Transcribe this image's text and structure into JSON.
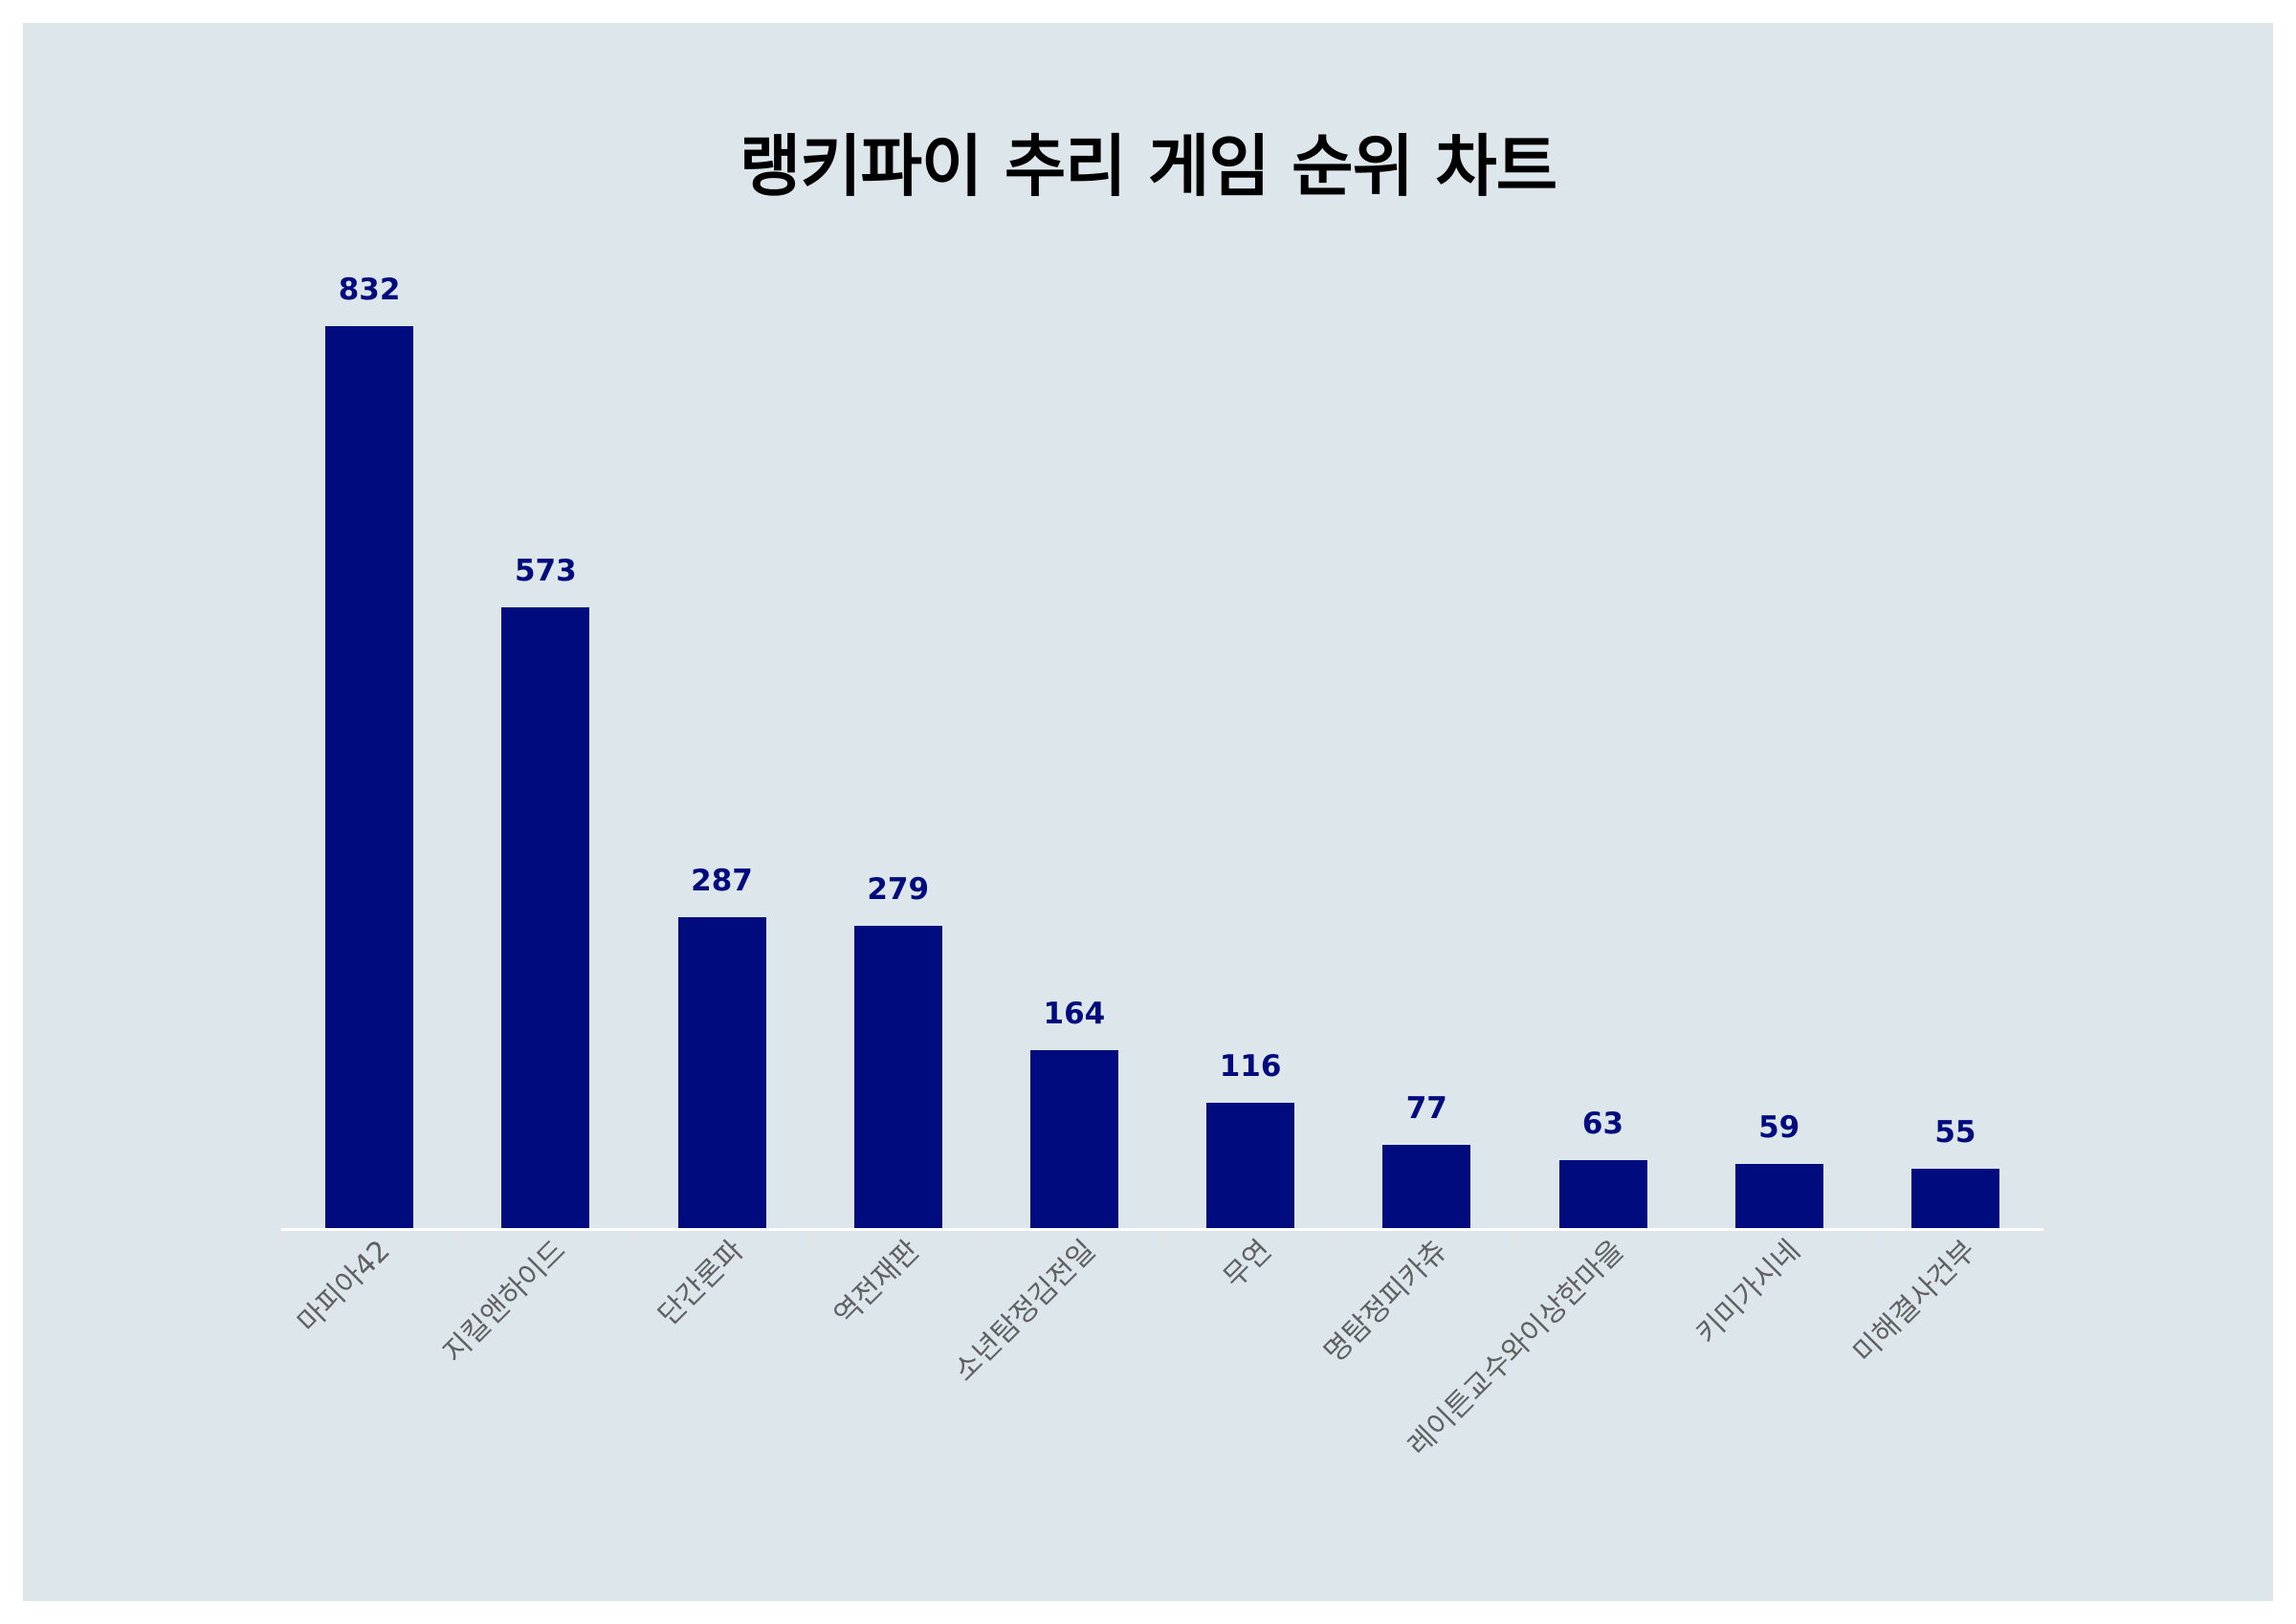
{
  "chart_data": {
    "type": "bar",
    "title": "랭키파이 추리 게임 순위 차트",
    "xlabel": "",
    "ylabel": "",
    "categories": [
      "마피아42",
      "지킬앤하이드",
      "단간론파",
      "역전재판",
      "소년탐정김전일",
      "무연",
      "명탐정피카츄",
      "레이튼교수와이상한마을",
      "키미가시네",
      "미해결사건부"
    ],
    "values": [
      832,
      573,
      287,
      279,
      164,
      116,
      77,
      63,
      59,
      55
    ],
    "ylim": [
      0,
      832
    ],
    "grid": false,
    "legend": null,
    "data_labels": true,
    "bar_color": "#000c7d",
    "background_color": "#dce6eb"
  },
  "title": "랭키파이 추리 게임 순위 차트",
  "bars": [
    {
      "label": "마피아42",
      "value": "832"
    },
    {
      "label": "지킬앤하이드",
      "value": "573"
    },
    {
      "label": "단간론파",
      "value": "287"
    },
    {
      "label": "역전재판",
      "value": "279"
    },
    {
      "label": "소년탐정김전일",
      "value": "164"
    },
    {
      "label": "무연",
      "value": "116"
    },
    {
      "label": "명탐정피카츄",
      "value": "77"
    },
    {
      "label": "레이튼교수와이상한마을",
      "value": "63"
    },
    {
      "label": "키미가시네",
      "value": "59"
    },
    {
      "label": "미해결사건부",
      "value": "55"
    }
  ]
}
